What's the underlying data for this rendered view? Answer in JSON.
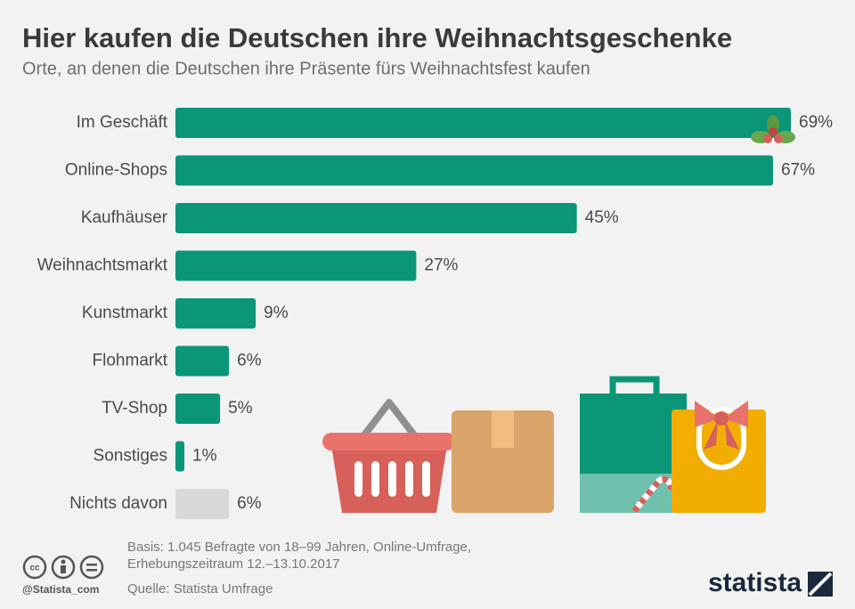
{
  "chart_data": {
    "type": "hbar",
    "title": "Hier kaufen die Deutschen ihre Weihnachtsgeschenke",
    "subtitle": "Orte, an denen die Deutschen ihre Präsente fürs Weihnachtsfest kaufen",
    "categories": [
      "Im Geschäft",
      "Online-Shops",
      "Kaufhäuser",
      "Weihnachtsmarkt",
      "Kunstmarkt",
      "Flohmarkt",
      "TV-Shop",
      "Sonstiges",
      "Nichts davon"
    ],
    "values": [
      69,
      67,
      45,
      27,
      9,
      6,
      5,
      1,
      6
    ],
    "value_labels": [
      "69%",
      "67%",
      "45%",
      "27%",
      "9%",
      "6%",
      "5%",
      "1%",
      "6%"
    ],
    "colors": [
      "#0b9677",
      "#0b9677",
      "#0b9677",
      "#0b9677",
      "#0b9677",
      "#0b9677",
      "#0b9677",
      "#0b9677",
      "#d8d8d8"
    ],
    "notes": [
      "Basis: 1.045 Befragte von 18–99 Jahren, Online-Umfrage,",
      "Erhebungszeitraum 12.–13.10.2017",
      "Quelle: Statista Umfrage"
    ],
    "credit": "@Statista_com",
    "brand": "statista"
  }
}
